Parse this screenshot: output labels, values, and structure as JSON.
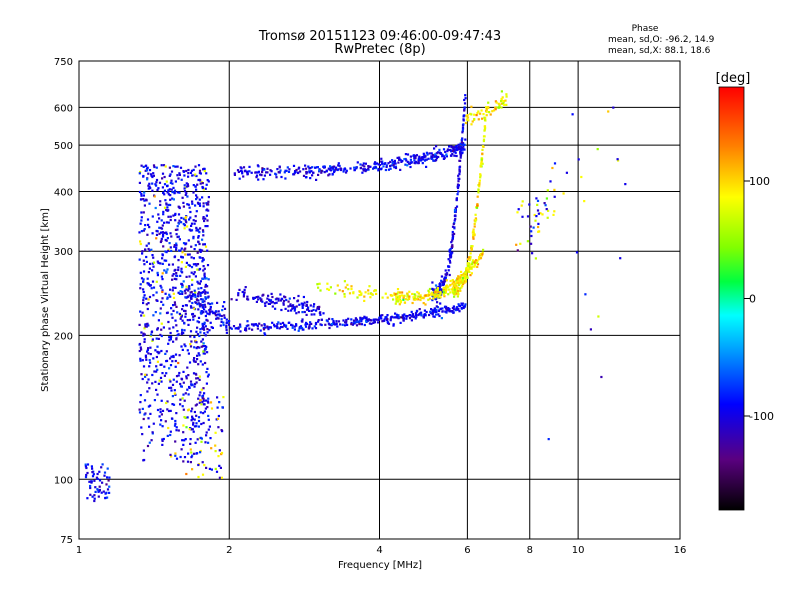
{
  "chart_data": {
    "type": "scatter",
    "title": "Tromsø 20151123 09:46:00-09:47:43",
    "subtitle": "RwPretec (8p)",
    "xlabel": "Frequency [MHz]",
    "ylabel": "Stationary phase Virtual Height [km]",
    "x_scale": "log",
    "y_scale": "log",
    "xlim": [
      1,
      16
    ],
    "ylim": [
      75,
      750
    ],
    "x_ticks": [
      1,
      2,
      4,
      6,
      8,
      10,
      16
    ],
    "y_ticks": [
      75,
      100,
      200,
      300,
      400,
      500,
      600,
      750
    ],
    "grid": true,
    "phase_info": {
      "title": "Phase",
      "line_o": "mean, sd,O: -96.2, 14.9",
      "line_x": "mean, sd,X:  88.1, 18.6"
    },
    "colorbar": {
      "label": "[deg]",
      "range": [
        -180,
        180
      ],
      "ticks": [
        100,
        0,
        -100
      ],
      "tick_labels": [
        "100",
        "0",
        "-100"
      ]
    },
    "series": [
      {
        "name": "O-mode",
        "color": "#1e3cff",
        "phase_mean": -96.2,
        "phase_sd": 14.9
      },
      {
        "name": "X-mode",
        "color": "#f0e000",
        "phase_mean": 88.1,
        "phase_sd": 18.6
      }
    ]
  }
}
